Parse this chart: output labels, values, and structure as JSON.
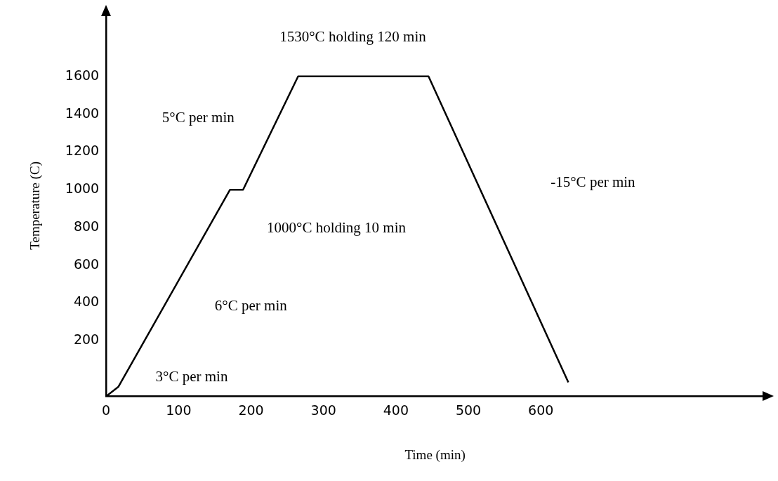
{
  "chart_data": {
    "type": "line",
    "xlabel": "Time (min)",
    "ylabel": "Temperature (C)",
    "x": [
      0,
      17,
      171,
      189,
      265,
      445,
      638
    ],
    "series": [
      {
        "color": "#000000",
        "values": [
          -94,
          -43,
          1000,
          1000,
          1600,
          1600,
          -20
        ]
      }
    ],
    "xlim": [
      0,
      908
    ],
    "ylim": [
      -94,
      1925
    ],
    "xticks": [
      0,
      100,
      200,
      300,
      400,
      500,
      600
    ],
    "yticks": [
      200,
      400,
      600,
      800,
      1000,
      1200,
      1400,
      1600
    ],
    "grid": false,
    "legend": false,
    "marker": "none",
    "line_style": "solid",
    "annotations": [
      "1530°C holding 120 min",
      "5°C per min",
      "1000°C holding 10 min",
      "6°C per min",
      "3°C per min",
      "-15°C per min"
    ]
  }
}
